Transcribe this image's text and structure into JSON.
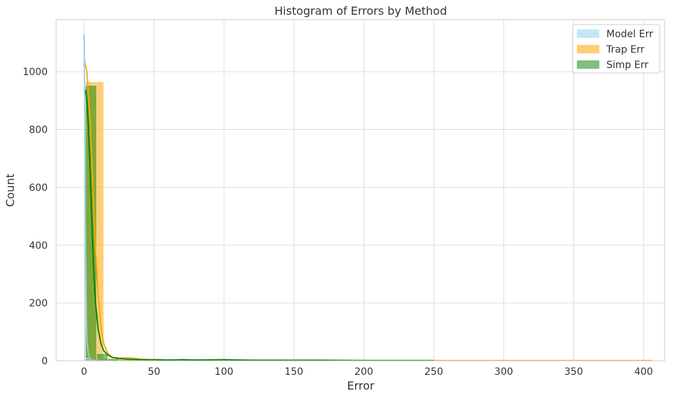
{
  "chart_data": {
    "type": "bar",
    "title": "Histogram of Errors by Method",
    "xlabel": "Error",
    "ylabel": "Count",
    "xlim": [
      -20,
      415
    ],
    "ylim": [
      0,
      1180
    ],
    "xticks": [
      0,
      50,
      100,
      150,
      200,
      250,
      300,
      350,
      400
    ],
    "yticks": [
      0,
      200,
      400,
      600,
      800,
      1000
    ],
    "grid": true,
    "legend_position": "top-right",
    "series": [
      {
        "name": "Model Err",
        "color": "#87ceeb",
        "bins": [
          {
            "x0": 0,
            "x1": 1,
            "count": 1000
          },
          {
            "x0": 1,
            "x1": 5,
            "count": 8
          },
          {
            "x0": 5,
            "x1": 10,
            "count": 2
          }
        ],
        "kde": [
          [
            0,
            1130
          ],
          [
            0.4,
            900
          ],
          [
            0.8,
            600
          ],
          [
            1.2,
            350
          ],
          [
            1.6,
            180
          ],
          [
            2,
            80
          ],
          [
            3,
            25
          ],
          [
            4,
            8
          ],
          [
            6,
            2
          ],
          [
            10,
            0
          ]
        ]
      },
      {
        "name": "Trap Err",
        "color": "#ffa500",
        "bins": [
          {
            "x0": 0,
            "x1": 14,
            "count": 965
          },
          {
            "x0": 14,
            "x1": 28,
            "count": 8
          },
          {
            "x0": 28,
            "x1": 42,
            "count": 6
          },
          {
            "x0": 42,
            "x1": 56,
            "count": 3
          },
          {
            "x0": 56,
            "x1": 70,
            "count": 1
          },
          {
            "x0": 70,
            "x1": 98,
            "count": 1
          },
          {
            "x0": 98,
            "x1": 112,
            "count": 2
          },
          {
            "x0": 112,
            "x1": 252,
            "count": 0
          },
          {
            "x0": 252,
            "x1": 406,
            "count": 1
          }
        ],
        "kde": [
          [
            0,
            1045
          ],
          [
            2,
            1000
          ],
          [
            4,
            860
          ],
          [
            6,
            640
          ],
          [
            8,
            410
          ],
          [
            10,
            230
          ],
          [
            12,
            120
          ],
          [
            14,
            60
          ],
          [
            17,
            25
          ],
          [
            20,
            12
          ],
          [
            25,
            9
          ],
          [
            30,
            10
          ],
          [
            35,
            9
          ],
          [
            40,
            6
          ],
          [
            50,
            3
          ],
          [
            60,
            2
          ],
          [
            80,
            2
          ],
          [
            100,
            3
          ],
          [
            120,
            2
          ],
          [
            150,
            1
          ],
          [
            200,
            1
          ],
          [
            250,
            1
          ],
          [
            300,
            1
          ],
          [
            350,
            1
          ],
          [
            406,
            1
          ]
        ]
      },
      {
        "name": "Simp Err",
        "color": "#008000",
        "bins": [
          {
            "x0": 1,
            "x1": 9,
            "count": 953
          },
          {
            "x0": 9,
            "x1": 17,
            "count": 25
          },
          {
            "x0": 17,
            "x1": 25,
            "count": 7
          },
          {
            "x0": 25,
            "x1": 33,
            "count": 4
          },
          {
            "x0": 33,
            "x1": 41,
            "count": 3
          },
          {
            "x0": 41,
            "x1": 57,
            "count": 3
          },
          {
            "x0": 57,
            "x1": 80,
            "count": 2
          },
          {
            "x0": 80,
            "x1": 112,
            "count": 2
          },
          {
            "x0": 112,
            "x1": 252,
            "count": 1
          }
        ],
        "kde": [
          [
            0,
            940
          ],
          [
            1,
            935
          ],
          [
            2,
            900
          ],
          [
            3,
            820
          ],
          [
            4,
            700
          ],
          [
            5,
            560
          ],
          [
            6,
            420
          ],
          [
            7,
            300
          ],
          [
            8,
            210
          ],
          [
            10,
            110
          ],
          [
            12,
            60
          ],
          [
            14,
            35
          ],
          [
            17,
            20
          ],
          [
            20,
            12
          ],
          [
            25,
            8
          ],
          [
            30,
            6
          ],
          [
            40,
            4
          ],
          [
            50,
            4
          ],
          [
            60,
            3
          ],
          [
            70,
            4
          ],
          [
            80,
            3
          ],
          [
            100,
            4
          ],
          [
            120,
            2
          ],
          [
            150,
            2
          ],
          [
            170,
            2
          ],
          [
            200,
            1
          ],
          [
            250,
            1
          ]
        ]
      }
    ]
  }
}
